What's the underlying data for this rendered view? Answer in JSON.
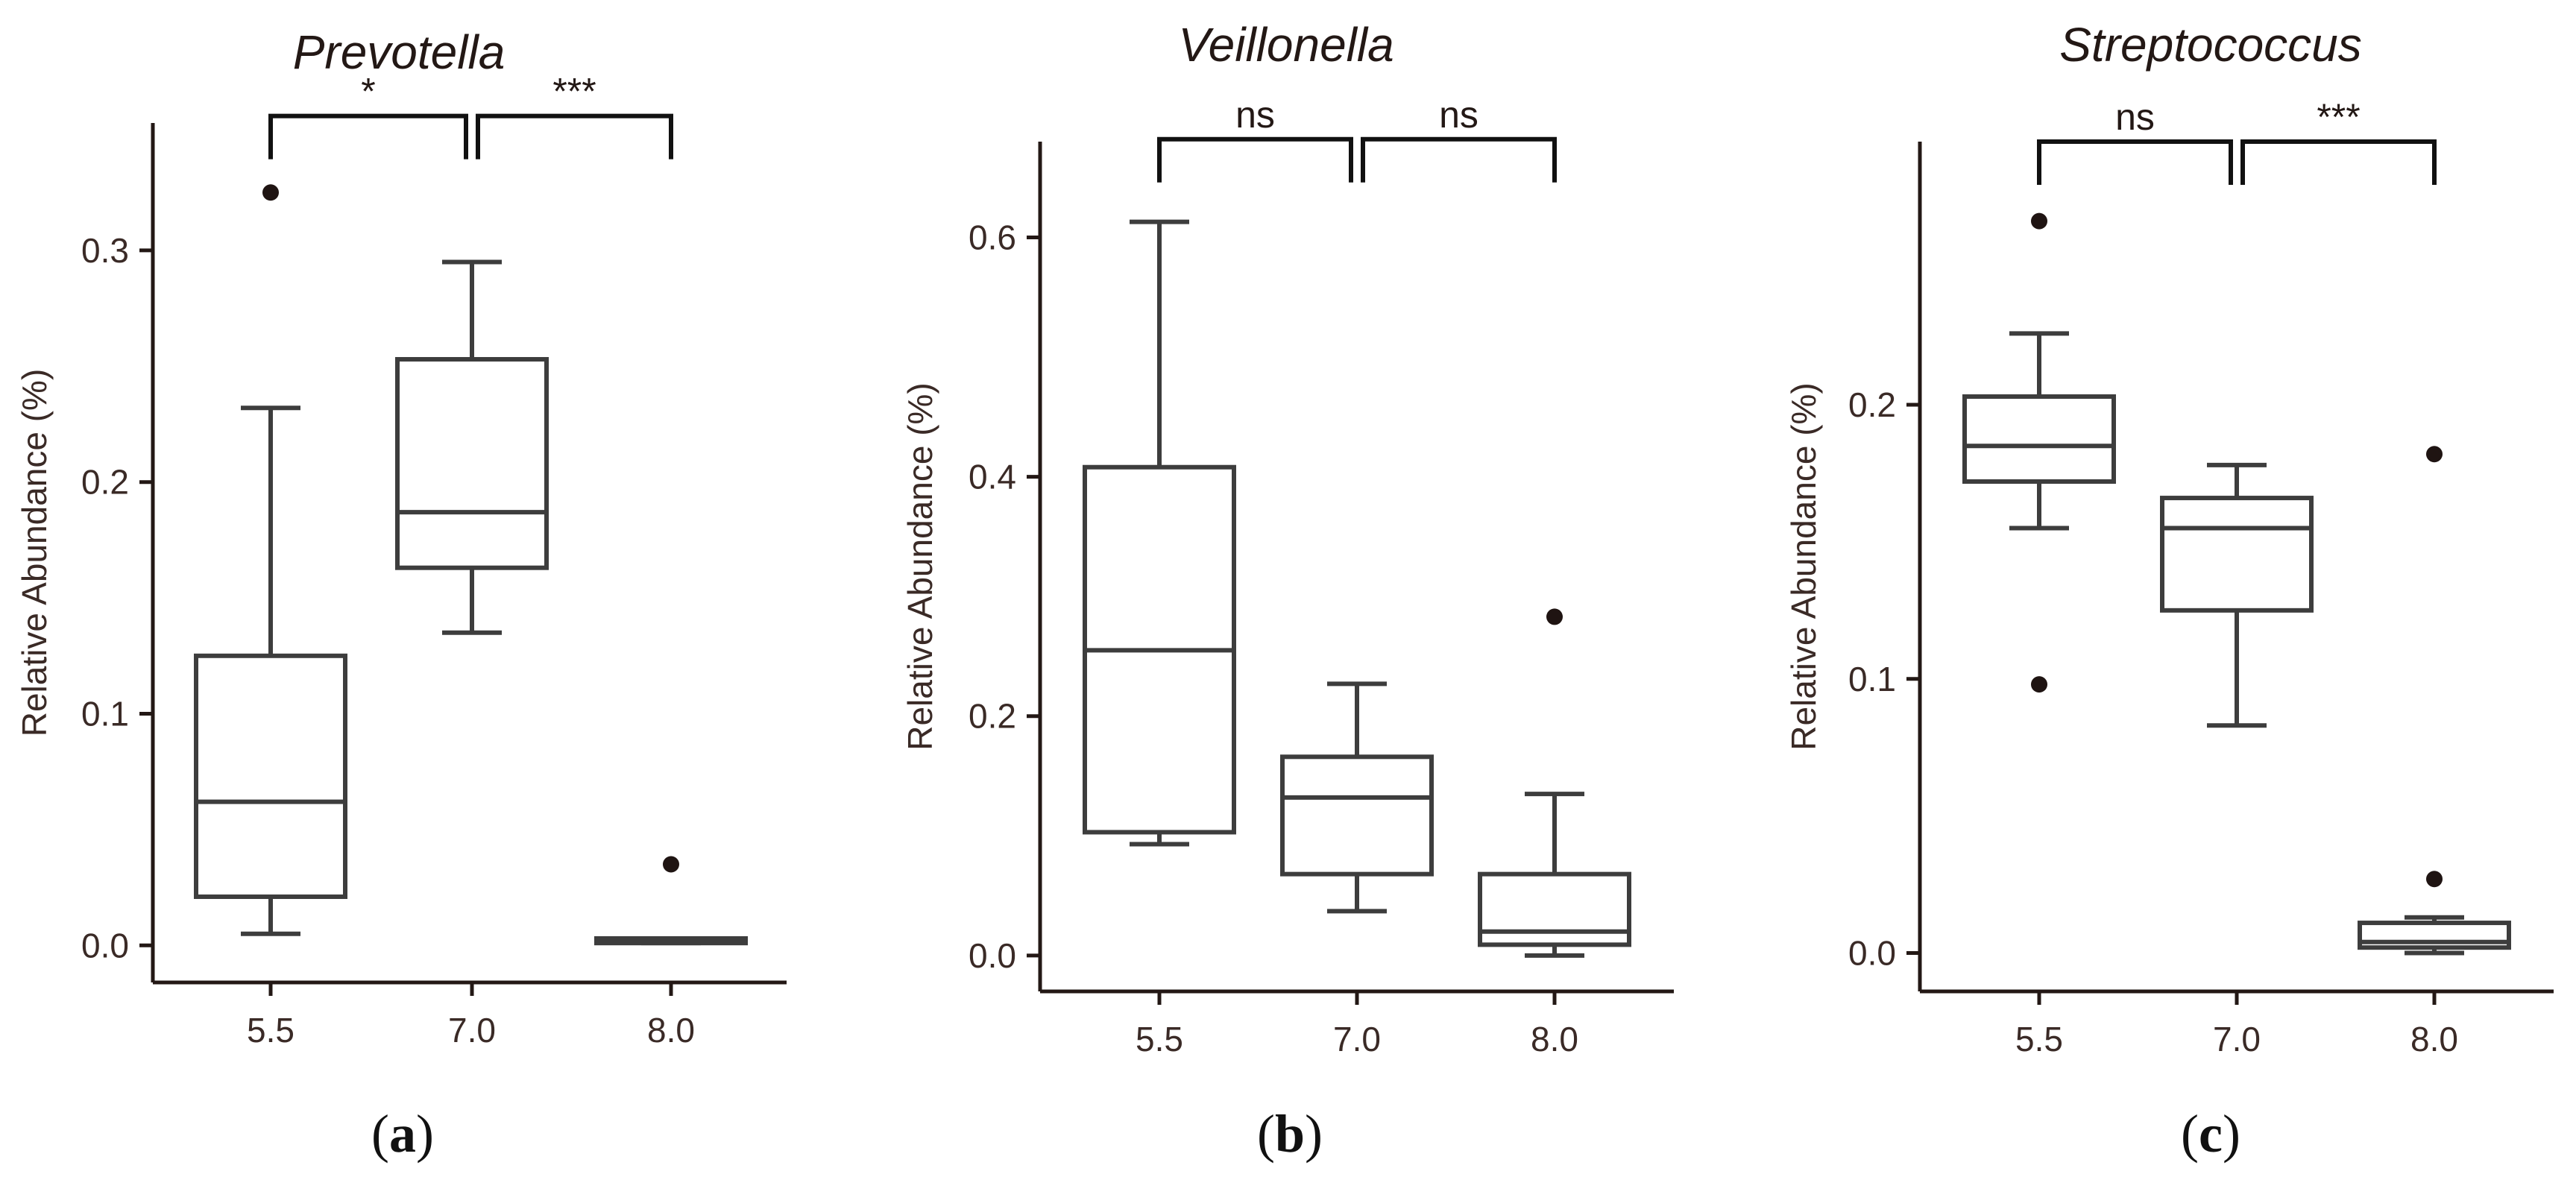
{
  "chart_data": [
    {
      "type": "box",
      "panel_label": "a",
      "title": "Prevotella",
      "ylabel": "Relative Abundance (%)",
      "xlabel": "",
      "categories": [
        "5.5",
        "7.0",
        "8.0"
      ],
      "yticks": [
        0.0,
        0.1,
        0.2,
        0.3
      ],
      "ytick_labels": [
        "0.0",
        "0.1",
        "0.2",
        "0.3"
      ],
      "ylim": [
        -0.016,
        0.355
      ],
      "boxes": [
        {
          "category": "5.5",
          "whisker_low": 0.005,
          "q1": 0.021,
          "median": 0.062,
          "q3": 0.125,
          "whisker_high": 0.232,
          "outliers": [
            0.325
          ]
        },
        {
          "category": "7.0",
          "whisker_low": 0.135,
          "q1": 0.163,
          "median": 0.187,
          "q3": 0.253,
          "whisker_high": 0.295,
          "outliers": []
        },
        {
          "category": "8.0",
          "whisker_low": 0.001,
          "q1": 0.001,
          "median": 0.002,
          "q3": 0.003,
          "whisker_high": 0.003,
          "outliers": [
            0.035
          ]
        }
      ],
      "comparisons": [
        {
          "pair": [
            "5.5",
            "7.0"
          ],
          "label": "*",
          "y": 0.358
        },
        {
          "pair": [
            "7.0",
            "8.0"
          ],
          "label": "***",
          "y": 0.358
        }
      ]
    },
    {
      "type": "box",
      "panel_label": "b",
      "title": "Veillonella",
      "ylabel": "Relative Abundance (%)",
      "xlabel": "",
      "categories": [
        "5.5",
        "7.0",
        "8.0"
      ],
      "yticks": [
        0.0,
        0.2,
        0.4,
        0.6
      ],
      "ytick_labels": [
        "0.0",
        "0.2",
        "0.4",
        "0.6"
      ],
      "ylim": [
        -0.03,
        0.68
      ],
      "boxes": [
        {
          "category": "5.5",
          "whisker_low": 0.093,
          "q1": 0.103,
          "median": 0.255,
          "q3": 0.408,
          "whisker_high": 0.613,
          "outliers": []
        },
        {
          "category": "7.0",
          "whisker_low": 0.037,
          "q1": 0.068,
          "median": 0.132,
          "q3": 0.166,
          "whisker_high": 0.227,
          "outliers": []
        },
        {
          "category": "8.0",
          "whisker_low": 0.0,
          "q1": 0.009,
          "median": 0.02,
          "q3": 0.068,
          "whisker_high": 0.135,
          "outliers": [
            0.283
          ]
        }
      ],
      "comparisons": [
        {
          "pair": [
            "5.5",
            "7.0"
          ],
          "label": "ns",
          "y": 0.682
        },
        {
          "pair": [
            "7.0",
            "8.0"
          ],
          "label": "ns",
          "y": 0.682
        }
      ]
    },
    {
      "type": "box",
      "panel_label": "c",
      "title": "Streptococcus",
      "ylabel": "Relative Abundance (%)",
      "xlabel": "",
      "categories": [
        "5.5",
        "7.0",
        "8.0"
      ],
      "yticks": [
        0.0,
        0.1,
        0.2
      ],
      "ytick_labels": [
        "0.0",
        "0.1",
        "0.2"
      ],
      "ylim": [
        -0.014,
        0.296
      ],
      "boxes": [
        {
          "category": "5.5",
          "whisker_low": 0.155,
          "q1": 0.172,
          "median": 0.185,
          "q3": 0.203,
          "whisker_high": 0.226,
          "outliers": [
            0.267,
            0.098
          ]
        },
        {
          "category": "7.0",
          "whisker_low": 0.083,
          "q1": 0.125,
          "median": 0.155,
          "q3": 0.166,
          "whisker_high": 0.178,
          "outliers": []
        },
        {
          "category": "8.0",
          "whisker_low": 0.0,
          "q1": 0.002,
          "median": 0.004,
          "q3": 0.011,
          "whisker_high": 0.013,
          "outliers": [
            0.182,
            0.027
          ]
        }
      ],
      "comparisons": [
        {
          "pair": [
            "5.5",
            "7.0"
          ],
          "label": "ns",
          "y": 0.296
        },
        {
          "pair": [
            "7.0",
            "8.0"
          ],
          "label": "***",
          "y": 0.296
        }
      ]
    }
  ]
}
